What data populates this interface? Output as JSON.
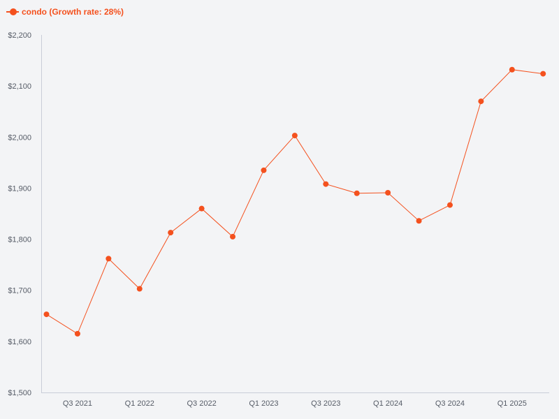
{
  "colors": {
    "series": "#f4511e",
    "axis": "#c9ccd8",
    "background": "#f3f4f6",
    "tick_text": "#555b66"
  },
  "legend": {
    "label": "condo (Growth rate: 28%)"
  },
  "chart_data": {
    "type": "line",
    "grid": false,
    "legend_position": "top-left",
    "x": [
      "Q2 2021",
      "Q3 2021",
      "Q4 2021",
      "Q1 2022",
      "Q2 2022",
      "Q3 2022",
      "Q4 2022",
      "Q1 2023",
      "Q2 2023",
      "Q3 2023",
      "Q4 2023",
      "Q1 2024",
      "Q2 2024",
      "Q3 2024",
      "Q4 2024",
      "Q1 2025",
      "Q2 2025"
    ],
    "series": [
      {
        "name": "condo (Growth rate: 28%)",
        "values": [
          1653,
          1615,
          1762,
          1703,
          1813,
          1860,
          1805,
          1935,
          2003,
          1908,
          1890,
          1891,
          1836,
          1867,
          2070,
          2132,
          2124
        ]
      }
    ],
    "x_tick_labels": [
      "Q3 2021",
      "Q1 2022",
      "Q3 2022",
      "Q1 2023",
      "Q3 2023",
      "Q1 2024",
      "Q3 2024",
      "Q1 2025"
    ],
    "y_tick_labels": [
      "$2,200",
      "$2,100",
      "$2,000",
      "$1,900",
      "$1,800",
      "$1,700",
      "$1,600",
      "$1,500"
    ],
    "y_ticks": [
      2200,
      2100,
      2000,
      1900,
      1800,
      1700,
      1600,
      1500
    ],
    "ylim": [
      1500,
      2200
    ]
  }
}
